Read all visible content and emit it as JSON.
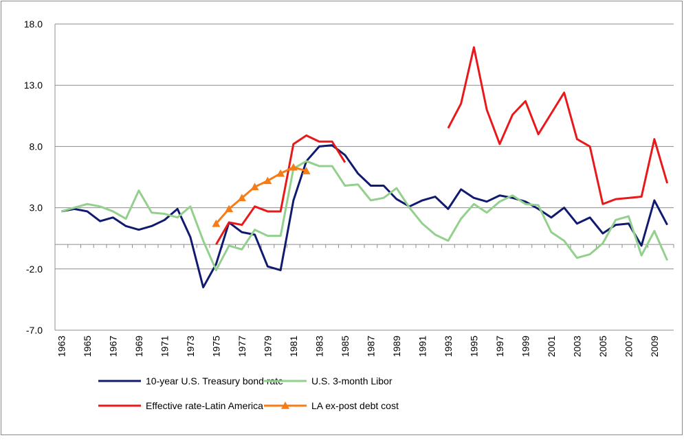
{
  "chart_data": {
    "type": "line",
    "categories": [
      "1963",
      null,
      "1965",
      null,
      "1967",
      null,
      "1969",
      null,
      "1971",
      null,
      "1973",
      null,
      "1975",
      null,
      "1977",
      null,
      "1979",
      null,
      "1981",
      null,
      "1983",
      null,
      "1985",
      null,
      "1987",
      null,
      "1989",
      null,
      "1991",
      null,
      "1993",
      null,
      "1995",
      null,
      "1997",
      null,
      "1999",
      null,
      "2001",
      null,
      "2003",
      null,
      "2005",
      null,
      "2007",
      null,
      "2009",
      null
    ],
    "series": [
      {
        "name": "10-year U.S. Treasury bond rate",
        "color": "#101a6e",
        "marker": false,
        "values": [
          2.7,
          2.9,
          2.7,
          1.9,
          2.2,
          1.5,
          1.2,
          1.5,
          2.0,
          2.9,
          0.6,
          -3.5,
          -1.6,
          1.8,
          1.0,
          0.8,
          -1.8,
          -2.1,
          3.6,
          6.8,
          8.0,
          8.1,
          7.3,
          5.8,
          4.8,
          4.8,
          3.7,
          3.1,
          3.6,
          3.9,
          2.9,
          4.5,
          3.8,
          3.5,
          4.0,
          3.8,
          3.5,
          2.9,
          2.2,
          3.0,
          1.7,
          2.2,
          0.9,
          1.6,
          1.7,
          -0.1,
          3.6,
          1.6
        ]
      },
      {
        "name": "U.S. 3-month Libor",
        "color": "#93cf8d",
        "marker": false,
        "values": [
          2.7,
          3.0,
          3.3,
          3.1,
          2.7,
          2.1,
          4.4,
          2.6,
          2.5,
          2.2,
          3.1,
          0.3,
          -2.1,
          -0.1,
          -0.4,
          1.2,
          0.7,
          0.7,
          6.2,
          6.8,
          6.4,
          6.4,
          4.8,
          4.9,
          3.6,
          3.8,
          4.6,
          3.0,
          1.7,
          0.8,
          0.3,
          2.1,
          3.3,
          2.6,
          3.5,
          4.0,
          3.3,
          3.2,
          1.0,
          0.3,
          -1.1,
          -0.8,
          0.1,
          2.0,
          2.3,
          -0.9,
          1.1,
          -1.3
        ]
      },
      {
        "name": "Effective rate-Latin America",
        "color": "#e8181b",
        "marker": false,
        "values": [
          null,
          null,
          null,
          null,
          null,
          null,
          null,
          null,
          null,
          null,
          null,
          null,
          0.0,
          1.8,
          1.6,
          3.1,
          2.7,
          2.7,
          8.2,
          8.9,
          8.4,
          8.4,
          6.7,
          null,
          null,
          null,
          null,
          null,
          null,
          null,
          9.5,
          11.5,
          16.1,
          11.0,
          8.2,
          10.6,
          11.7,
          9.0,
          10.7,
          12.4,
          8.6,
          8.0,
          3.3,
          3.7,
          3.8,
          3.9,
          8.6,
          5.0
        ]
      },
      {
        "name": "LA ex-post debt cost",
        "color": "#f57c16",
        "marker": true,
        "values": [
          null,
          null,
          null,
          null,
          null,
          null,
          null,
          null,
          null,
          null,
          null,
          null,
          1.7,
          2.9,
          3.8,
          4.7,
          5.2,
          5.8,
          6.3,
          6.0,
          null,
          null,
          null,
          null,
          null,
          null,
          null,
          null,
          null,
          null,
          null,
          null,
          null,
          null,
          null,
          null,
          null,
          null,
          null,
          null,
          null,
          null,
          null,
          null,
          null,
          null,
          null,
          null
        ]
      }
    ],
    "ylim": [
      -7,
      18
    ],
    "yticks": [
      {
        "value": -7,
        "label": "-7.0"
      },
      {
        "value": -2,
        "label": "-2.0"
      },
      {
        "value": 3,
        "label": "3.0"
      },
      {
        "value": 8,
        "label": "8.0"
      },
      {
        "value": 13,
        "label": "13.0"
      },
      {
        "value": 18,
        "label": "18.0"
      }
    ],
    "grid": true
  }
}
